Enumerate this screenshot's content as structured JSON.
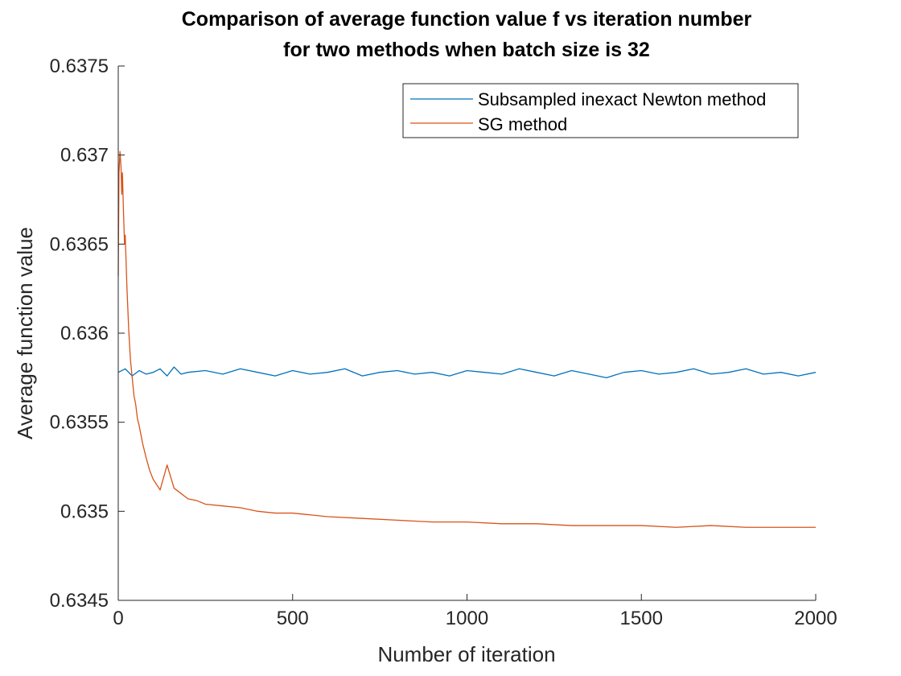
{
  "chart_data": {
    "type": "line",
    "title_lines": [
      "Comparison of average function value f vs iteration number",
      "for two methods when batch size is 32"
    ],
    "xlabel": "Number of iteration",
    "ylabel": "Average function value",
    "xlim": [
      0,
      2000
    ],
    "ylim": [
      0.6345,
      0.6375
    ],
    "xticks": [
      0,
      500,
      1000,
      1500,
      2000
    ],
    "xtick_labels": [
      "0",
      "500",
      "1000",
      "1500",
      "2000"
    ],
    "yticks": [
      0.6345,
      0.635,
      0.6355,
      0.636,
      0.6365,
      0.637,
      0.6375
    ],
    "ytick_labels": [
      "0.6345",
      "0.635",
      "0.6355",
      "0.636",
      "0.6365",
      "0.637",
      "0.6375"
    ],
    "grid": false,
    "legend_position": "top-right",
    "series": [
      {
        "name": "Subsampled inexact Newton method",
        "color": "#0072BD",
        "x": [
          0,
          20,
          40,
          60,
          80,
          100,
          120,
          140,
          160,
          180,
          200,
          250,
          300,
          350,
          400,
          450,
          500,
          550,
          600,
          650,
          700,
          750,
          800,
          850,
          900,
          950,
          1000,
          1050,
          1100,
          1150,
          1200,
          1250,
          1300,
          1350,
          1400,
          1450,
          1500,
          1550,
          1600,
          1650,
          1700,
          1750,
          1800,
          1850,
          1900,
          1950,
          2000
        ],
        "y": [
          0.63578,
          0.6358,
          0.63576,
          0.63579,
          0.63577,
          0.63578,
          0.6358,
          0.63576,
          0.63581,
          0.63577,
          0.63578,
          0.63579,
          0.63577,
          0.6358,
          0.63578,
          0.63576,
          0.63579,
          0.63577,
          0.63578,
          0.6358,
          0.63576,
          0.63578,
          0.63579,
          0.63577,
          0.63578,
          0.63576,
          0.63579,
          0.63578,
          0.63577,
          0.6358,
          0.63578,
          0.63576,
          0.63579,
          0.63577,
          0.63575,
          0.63578,
          0.63579,
          0.63577,
          0.63578,
          0.6358,
          0.63577,
          0.63578,
          0.6358,
          0.63577,
          0.63578,
          0.63576,
          0.63578
        ]
      },
      {
        "name": "SG method",
        "color": "#D95319",
        "x": [
          0,
          2,
          5,
          8,
          10,
          12,
          15,
          18,
          20,
          25,
          30,
          35,
          40,
          45,
          50,
          55,
          60,
          70,
          80,
          90,
          100,
          120,
          140,
          160,
          180,
          200,
          225,
          250,
          300,
          350,
          400,
          450,
          500,
          550,
          600,
          700,
          800,
          900,
          1000,
          1100,
          1200,
          1300,
          1400,
          1500,
          1600,
          1700,
          1800,
          1900,
          2000
        ],
        "y": [
          0.63632,
          0.6369,
          0.63702,
          0.63693,
          0.63678,
          0.6369,
          0.63668,
          0.6365,
          0.63655,
          0.63625,
          0.63602,
          0.63585,
          0.63575,
          0.63565,
          0.6356,
          0.63552,
          0.63548,
          0.63538,
          0.6353,
          0.63523,
          0.63518,
          0.63512,
          0.63526,
          0.63513,
          0.6351,
          0.63507,
          0.63506,
          0.63504,
          0.63503,
          0.63502,
          0.635,
          0.63499,
          0.63499,
          0.63498,
          0.63497,
          0.63496,
          0.63495,
          0.63494,
          0.63494,
          0.63493,
          0.63493,
          0.63492,
          0.63492,
          0.63492,
          0.63491,
          0.63492,
          0.63491,
          0.63491,
          0.63491
        ]
      }
    ]
  }
}
